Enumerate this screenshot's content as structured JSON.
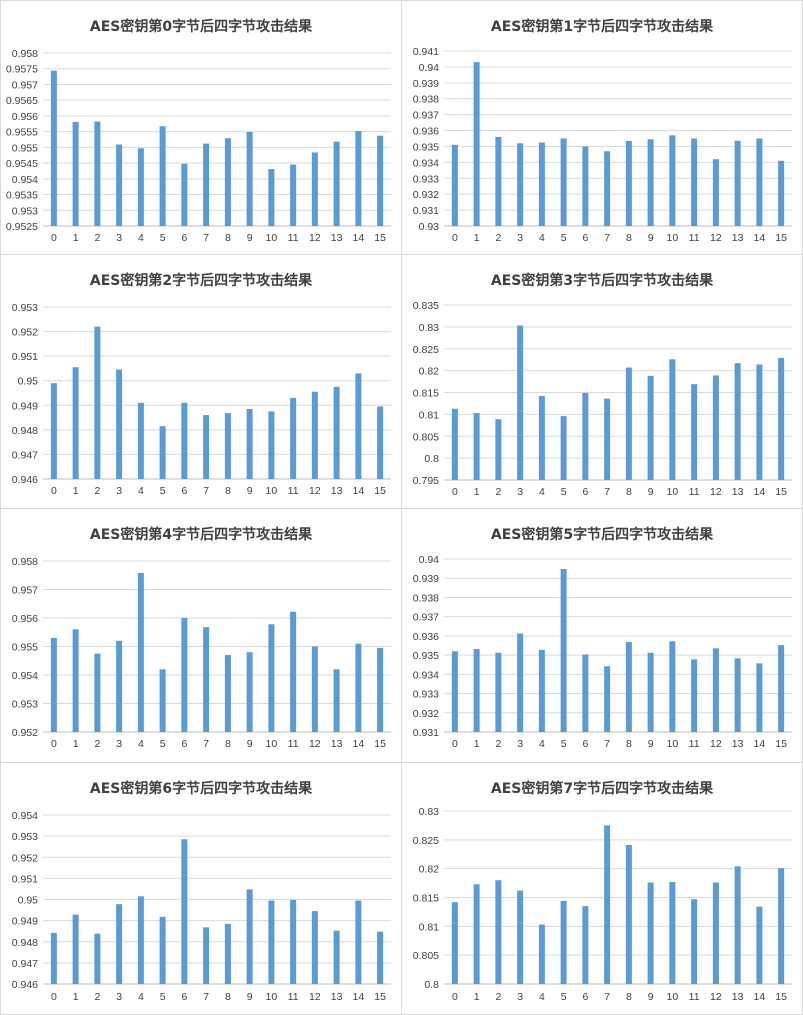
{
  "chart_data": [
    {
      "type": "bar",
      "title": "AES密钥第0字节后四字节攻击结果",
      "categories": [
        "0",
        "1",
        "2",
        "3",
        "4",
        "5",
        "6",
        "7",
        "8",
        "9",
        "10",
        "11",
        "12",
        "13",
        "14",
        "15"
      ],
      "values": [
        0.95744,
        0.95581,
        0.95582,
        0.95509,
        0.95497,
        0.95567,
        0.95448,
        0.95512,
        0.95529,
        0.95549,
        0.95431,
        0.95445,
        0.95484,
        0.95518,
        0.95552,
        0.95537
      ],
      "ylim": [
        0.9525,
        0.958
      ],
      "ticks": [
        "0.9525",
        "0.953",
        "0.9535",
        "0.954",
        "0.9545",
        "0.955",
        "0.9555",
        "0.956",
        "0.9565",
        "0.957",
        "0.9575",
        "0.958"
      ],
      "xlabel": "",
      "ylabel": ""
    },
    {
      "type": "bar",
      "title": "AES密钥第1字节后四字节攻击结果",
      "categories": [
        "0",
        "1",
        "2",
        "3",
        "4",
        "5",
        "6",
        "7",
        "8",
        "9",
        "10",
        "11",
        "12",
        "13",
        "14",
        "15"
      ],
      "values": [
        0.9351,
        0.9403,
        0.9356,
        0.9352,
        0.93525,
        0.9355,
        0.935,
        0.9347,
        0.93535,
        0.93545,
        0.9357,
        0.9355,
        0.9342,
        0.93535,
        0.9355,
        0.9341
      ],
      "ylim": [
        0.93,
        0.941
      ],
      "ticks": [
        "0.93",
        "0.931",
        "0.932",
        "0.933",
        "0.934",
        "0.935",
        "0.936",
        "0.937",
        "0.938",
        "0.939",
        "0.94",
        "0.941"
      ],
      "xlabel": "",
      "ylabel": ""
    },
    {
      "type": "bar",
      "title": "AES密钥第2字节后四字节攻击结果",
      "categories": [
        "0",
        "1",
        "2",
        "3",
        "4",
        "5",
        "6",
        "7",
        "8",
        "9",
        "10",
        "11",
        "12",
        "13",
        "14",
        "15"
      ],
      "values": [
        0.9499,
        0.95055,
        0.9522,
        0.95045,
        0.9491,
        0.94815,
        0.9491,
        0.9486,
        0.94868,
        0.94885,
        0.94875,
        0.9493,
        0.94955,
        0.94975,
        0.9503,
        0.94895
      ],
      "ylim": [
        0.946,
        0.953
      ],
      "ticks": [
        "0.946",
        "0.947",
        "0.948",
        "0.949",
        "0.95",
        "0.951",
        "0.952",
        "0.953"
      ],
      "xlabel": "",
      "ylabel": ""
    },
    {
      "type": "bar",
      "title": "AES密钥第3字节后四字节攻击结果",
      "categories": [
        "0",
        "1",
        "2",
        "3",
        "4",
        "5",
        "6",
        "7",
        "8",
        "9",
        "10",
        "11",
        "12",
        "13",
        "14",
        "15"
      ],
      "values": [
        0.8113,
        0.8103,
        0.8089,
        0.8303,
        0.8142,
        0.8096,
        0.8149,
        0.8136,
        0.8207,
        0.8188,
        0.8226,
        0.8169,
        0.8189,
        0.8217,
        0.8214,
        0.8229
      ],
      "ylim": [
        0.795,
        0.835
      ],
      "ticks": [
        "0.795",
        "0.8",
        "0.805",
        "0.81",
        "0.815",
        "0.82",
        "0.825",
        "0.83",
        "0.835"
      ],
      "xlabel": "",
      "ylabel": ""
    },
    {
      "type": "bar",
      "title": "AES密钥第4字节后四字节攻击结果",
      "categories": [
        "0",
        "1",
        "2",
        "3",
        "4",
        "5",
        "6",
        "7",
        "8",
        "9",
        "10",
        "11",
        "12",
        "13",
        "14",
        "15"
      ],
      "values": [
        0.9553,
        0.9556,
        0.95475,
        0.9552,
        0.95758,
        0.9542,
        0.956,
        0.95568,
        0.9547,
        0.9548,
        0.95578,
        0.95622,
        0.955,
        0.9542,
        0.9551,
        0.95495
      ],
      "ylim": [
        0.952,
        0.958
      ],
      "ticks": [
        "0.952",
        "0.953",
        "0.954",
        "0.955",
        "0.956",
        "0.957",
        "0.958"
      ],
      "xlabel": "",
      "ylabel": ""
    },
    {
      "type": "bar",
      "title": "AES密钥第5字节后四字节攻击结果",
      "categories": [
        "0",
        "1",
        "2",
        "3",
        "4",
        "5",
        "6",
        "7",
        "8",
        "9",
        "10",
        "11",
        "12",
        "13",
        "14",
        "15"
      ],
      "values": [
        0.9352,
        0.93532,
        0.93512,
        0.93612,
        0.93527,
        0.93948,
        0.93503,
        0.93442,
        0.93568,
        0.93512,
        0.93572,
        0.93478,
        0.93535,
        0.93483,
        0.93457,
        0.93552
      ],
      "ylim": [
        0.931,
        0.94
      ],
      "ticks": [
        "0.931",
        "0.932",
        "0.933",
        "0.934",
        "0.935",
        "0.936",
        "0.937",
        "0.938",
        "0.939",
        "0.94"
      ],
      "xlabel": "",
      "ylabel": ""
    },
    {
      "type": "bar",
      "title": "AES密钥第6字节后四字节攻击结果",
      "categories": [
        "0",
        "1",
        "2",
        "3",
        "4",
        "5",
        "6",
        "7",
        "8",
        "9",
        "10",
        "11",
        "12",
        "13",
        "14",
        "15"
      ],
      "values": [
        0.94842,
        0.94928,
        0.94838,
        0.94978,
        0.95015,
        0.94918,
        0.95285,
        0.94868,
        0.94885,
        0.95048,
        0.94995,
        0.94998,
        0.94945,
        0.94852,
        0.94995,
        0.94848
      ],
      "ylim": [
        0.946,
        0.954
      ],
      "ticks": [
        "0.946",
        "0.947",
        "0.948",
        "0.949",
        "0.95",
        "0.951",
        "0.952",
        "0.953",
        "0.954"
      ],
      "xlabel": "",
      "ylabel": ""
    },
    {
      "type": "bar",
      "title": "AES密钥第7字节后四字节攻击结果",
      "categories": [
        "0",
        "1",
        "2",
        "3",
        "4",
        "5",
        "6",
        "7",
        "8",
        "9",
        "10",
        "11",
        "12",
        "13",
        "14",
        "15"
      ],
      "values": [
        0.8142,
        0.8173,
        0.818,
        0.8162,
        0.8103,
        0.8144,
        0.8135,
        0.8275,
        0.8241,
        0.8176,
        0.8177,
        0.8147,
        0.8176,
        0.8204,
        0.8134,
        0.8201
      ],
      "ylim": [
        0.8,
        0.83
      ],
      "ticks": [
        "0.8",
        "0.805",
        "0.81",
        "0.815",
        "0.82",
        "0.825",
        "0.83"
      ],
      "xlabel": "",
      "ylabel": ""
    }
  ]
}
